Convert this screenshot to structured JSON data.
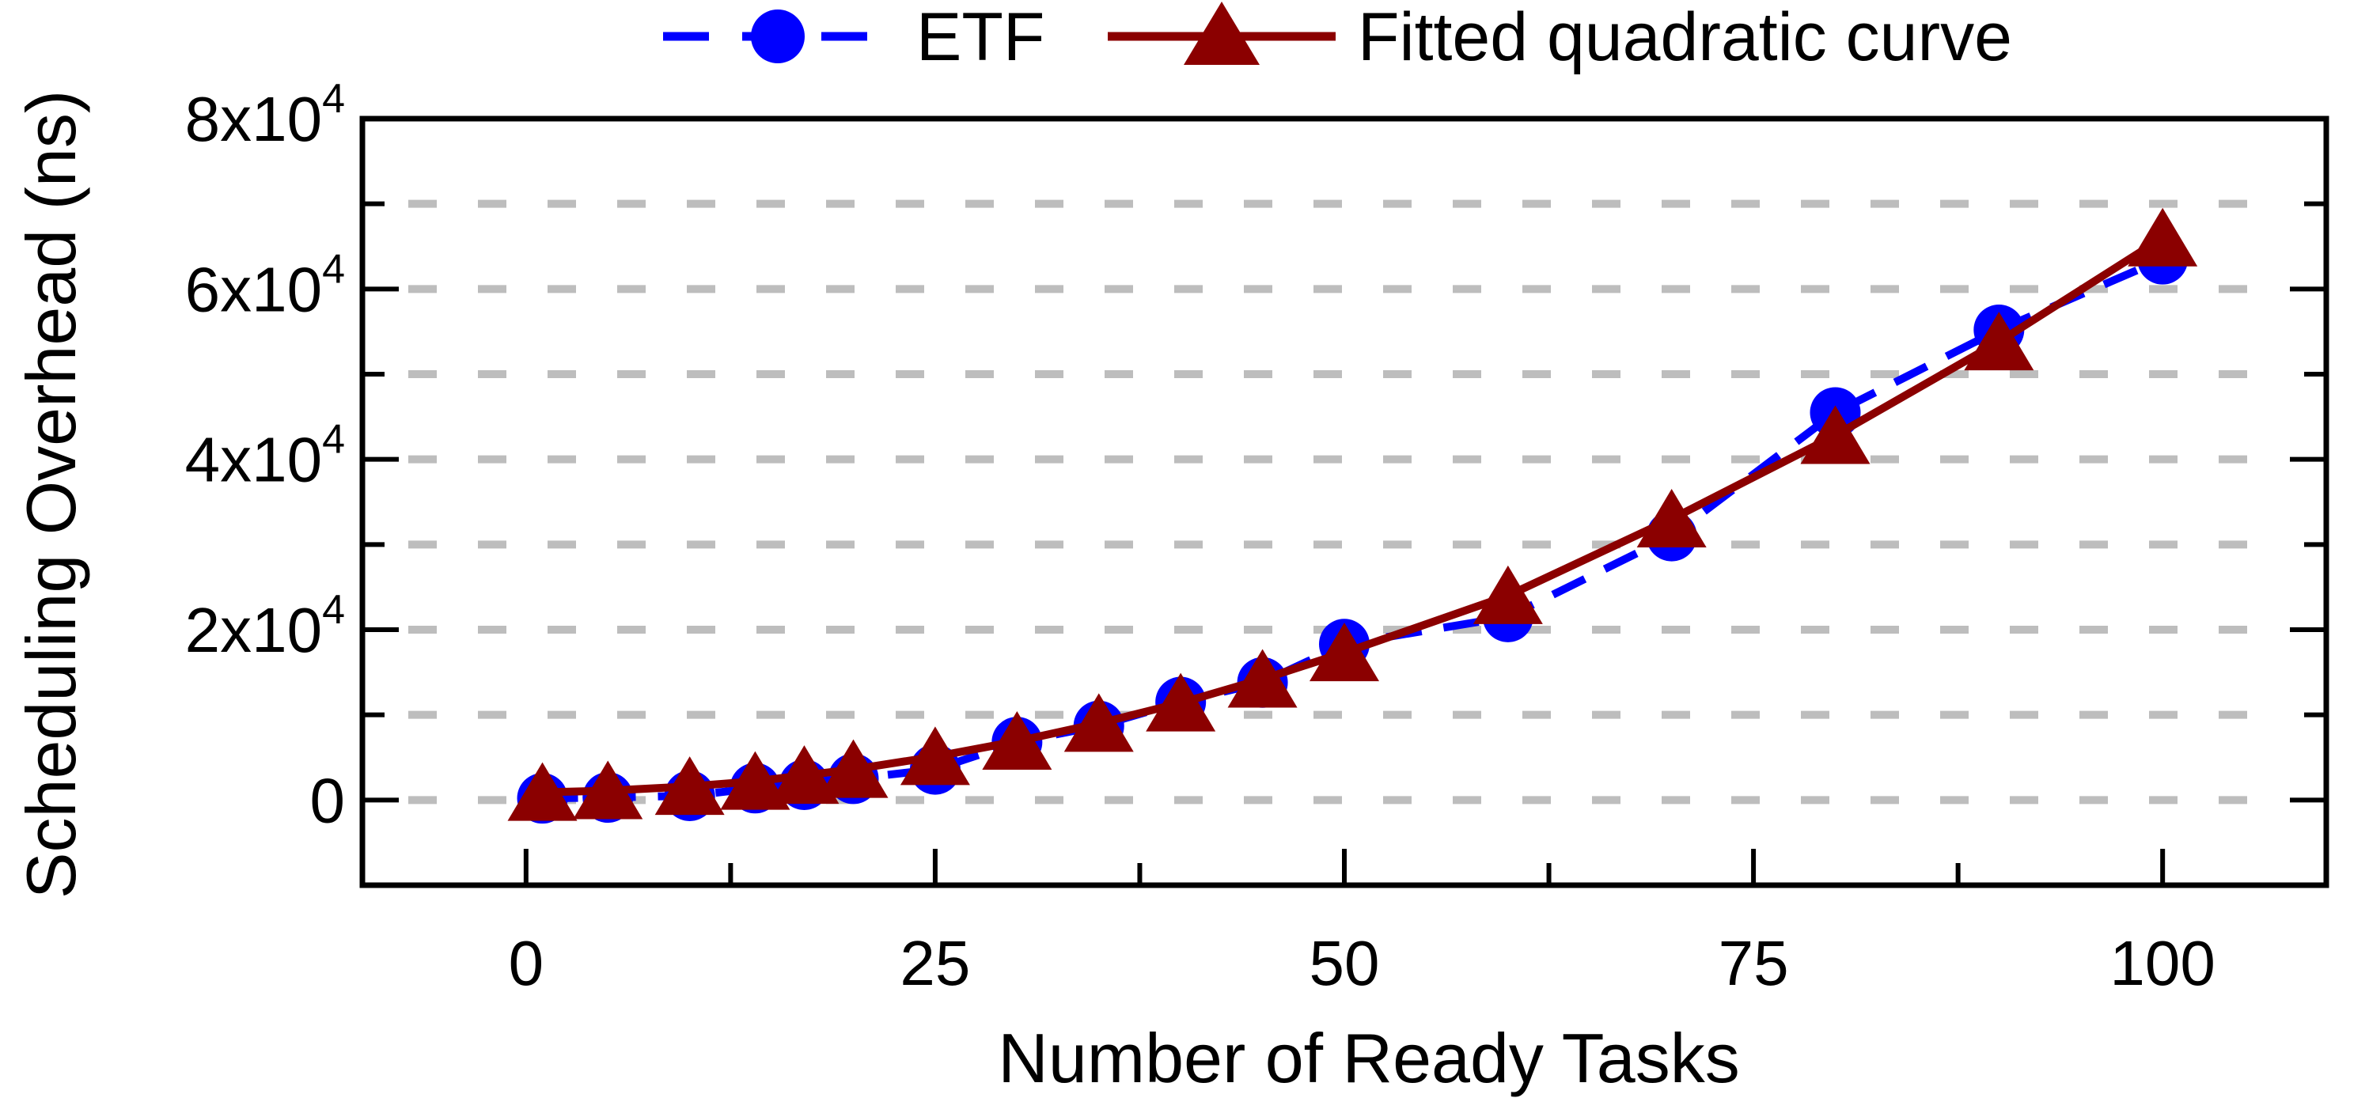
{
  "chart_data": {
    "type": "line",
    "title": "",
    "xlabel": "Number of Ready Tasks",
    "ylabel": "Scheduling Overhead (ns)",
    "xlim": [
      -10,
      110
    ],
    "ylim": [
      -10000,
      80000
    ],
    "grid": "horizontal dashed gridlines every 1x10^4 from 0 to 7x10^4",
    "legend_position": "top-center",
    "colors": {
      "etf": "#0000ff",
      "fitted": "#8b0000",
      "gridline": "#bdbdbd",
      "axis": "#000000"
    },
    "x_major_ticks": [
      0,
      25,
      50,
      75,
      100
    ],
    "x_minor_ticks": [
      12.5,
      37.5,
      62.5,
      87.5
    ],
    "x_tick_labels": [
      "0",
      "25",
      "50",
      "75",
      "100"
    ],
    "y_major_ticks": [
      0,
      20000,
      40000,
      60000,
      80000
    ],
    "y_minor_ticks": [
      10000,
      30000,
      50000,
      70000
    ],
    "y_tick_labels": [
      {
        "value": 0,
        "base": "0",
        "exp": null
      },
      {
        "value": 20000,
        "base": "2x10",
        "exp": "4"
      },
      {
        "value": 40000,
        "base": "4x10",
        "exp": "4"
      },
      {
        "value": 60000,
        "base": "6x10",
        "exp": "4"
      },
      {
        "value": 80000,
        "base": "8x10",
        "exp": "4"
      }
    ],
    "gridlines_y": [
      0,
      10000,
      20000,
      30000,
      40000,
      50000,
      60000,
      70000
    ],
    "series": [
      {
        "name": "ETF",
        "marker": "circle",
        "line": "dashed",
        "color": "#0000ff",
        "x": [
          1,
          5,
          10,
          14,
          17,
          20,
          25,
          30,
          35,
          40,
          45,
          50,
          60,
          70,
          80,
          90,
          100
        ],
        "y": [
          200,
          300,
          500,
          1400,
          1800,
          2500,
          3600,
          6800,
          8700,
          11500,
          13800,
          18300,
          21500,
          31000,
          45500,
          55200,
          63500
        ]
      },
      {
        "name": "Fitted quadratic curve",
        "marker": "triangle-up",
        "line": "solid",
        "color": "#8b0000",
        "x": [
          1,
          5,
          10,
          14,
          17,
          20,
          25,
          30,
          35,
          40,
          45,
          50,
          60,
          70,
          80,
          90,
          100
        ],
        "y": [
          900,
          1100,
          1600,
          2200,
          2900,
          3600,
          5100,
          6900,
          9000,
          11400,
          14200,
          17300,
          24000,
          33000,
          42800,
          53800,
          66000
        ]
      }
    ]
  }
}
